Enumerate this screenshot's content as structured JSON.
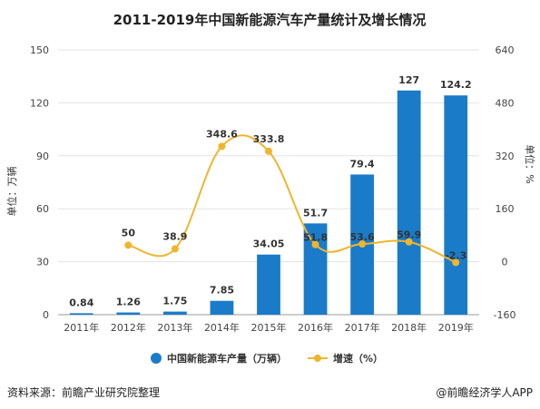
{
  "chart_data": {
    "type": "bar",
    "title": "2011-2019年中国新能源汽车产量统计及增长情况",
    "categories": [
      "2011年",
      "2012年",
      "2013年",
      "2014年",
      "2015年",
      "2016年",
      "2017年",
      "2018年",
      "2019年"
    ],
    "series": [
      {
        "name": "中国新能源车产量（万辆）",
        "type": "bar",
        "axis": "left",
        "color": "#1a7bc9",
        "values": [
          0.84,
          1.26,
          1.75,
          7.85,
          34.05,
          51.7,
          79.4,
          127,
          124.2
        ],
        "labels": [
          "0.84",
          "1.26",
          "1.75",
          "7.85",
          "34.05",
          "51.7",
          "79.4",
          "127",
          "124.2"
        ]
      },
      {
        "name": "增速（%）",
        "type": "line",
        "axis": "right",
        "color": "#f0b52d",
        "values": [
          null,
          50,
          38.9,
          348.6,
          333.8,
          51.8,
          53.6,
          59.9,
          -2.3
        ],
        "labels": [
          "",
          "50",
          "38.9",
          "348.6",
          "333.8",
          "51.8",
          "53.6",
          "59.9",
          "-2.3"
        ]
      }
    ],
    "ylabel": "单位：万辆",
    "y2label": "单位：%",
    "ylim": [
      0,
      150
    ],
    "yticks": [
      "0",
      "30",
      "60",
      "90",
      "120",
      "150"
    ],
    "y2lim": [
      -160,
      640
    ],
    "y2ticks": [
      "-160",
      "0",
      "160",
      "320",
      "480",
      "640"
    ],
    "grid": true,
    "legend": "bottom"
  },
  "footer": {
    "source": "资料来源：前瞻产业研究院整理",
    "brand": "@前瞻经济学人APP"
  },
  "watermark": "前瞻产业研究院"
}
